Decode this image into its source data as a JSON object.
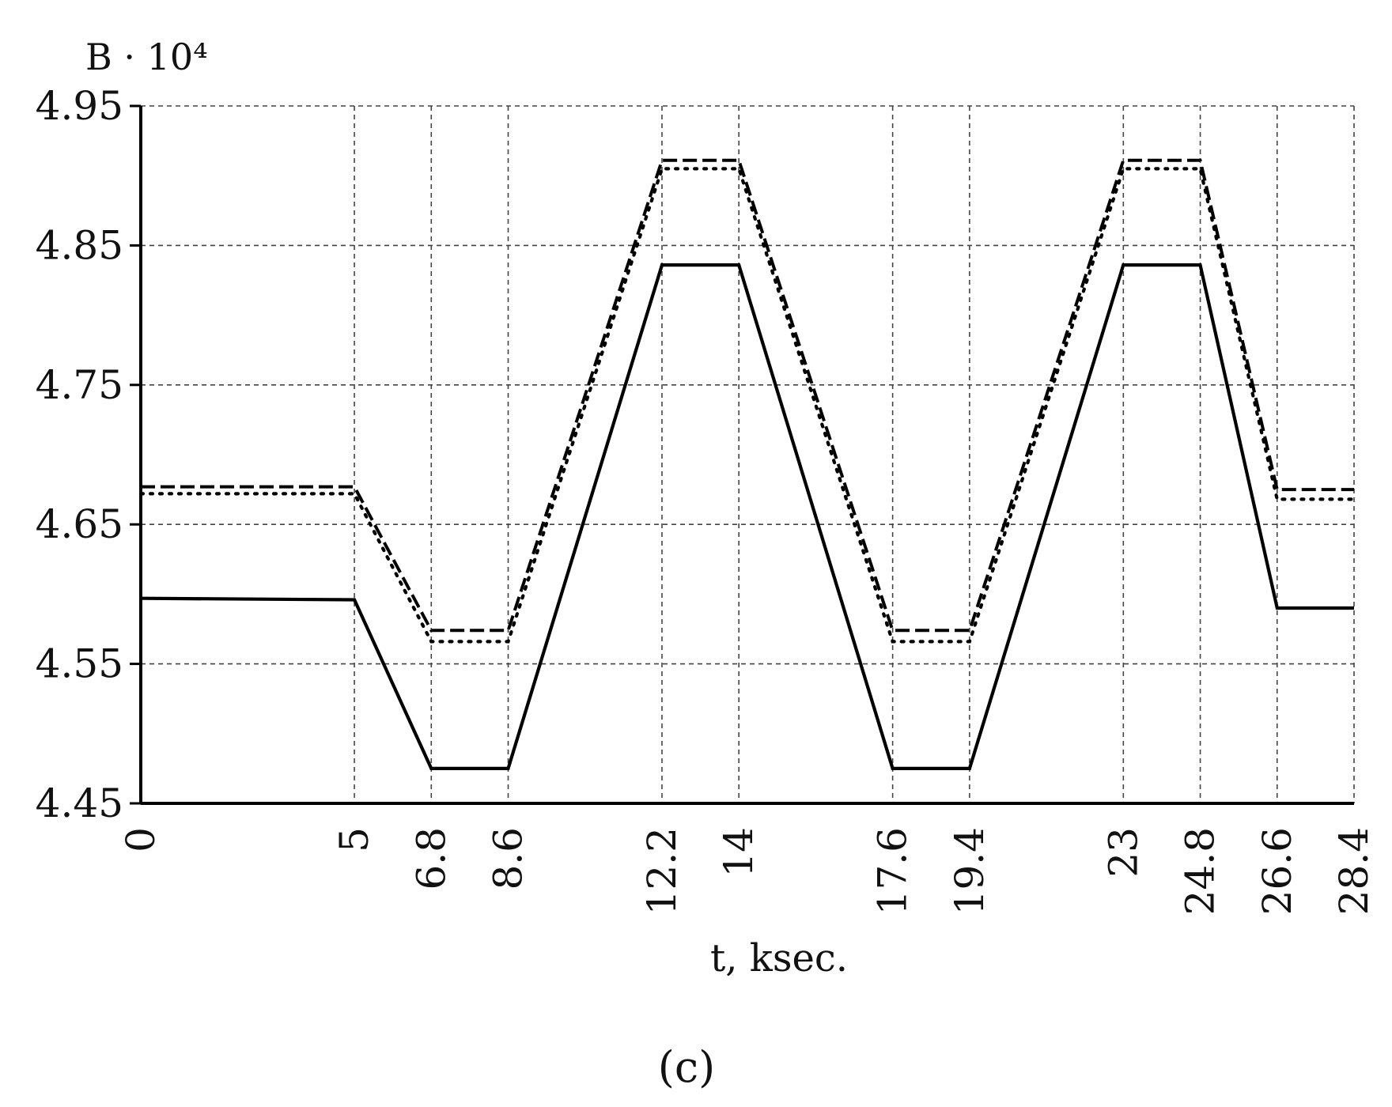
{
  "chart_data": {
    "type": "line",
    "ylabel": "B · 10⁴",
    "xlabel": "t, ksec.",
    "panel_label": "(c)",
    "x_ticks": [
      "0",
      "5",
      "6.8",
      "8.6",
      "12.2",
      "14",
      "17.6",
      "19.4",
      "23",
      "24.8",
      "26.6",
      "28.4"
    ],
    "y_ticks": [
      "4.45",
      "4.55",
      "4.65",
      "4.75",
      "4.85",
      "4.95"
    ],
    "xlim": [
      0,
      28.4
    ],
    "ylim": [
      4.45,
      4.95
    ],
    "grid": true,
    "series": [
      {
        "style": "solid",
        "x": [
          0,
          5,
          6.8,
          8.6,
          12.2,
          14,
          17.6,
          19.4,
          23,
          24.8,
          26.6,
          28.4
        ],
        "y": [
          4.597,
          4.596,
          4.475,
          4.475,
          4.836,
          4.836,
          4.475,
          4.475,
          4.836,
          4.836,
          4.59,
          4.59
        ]
      },
      {
        "style": "dashed",
        "x": [
          0,
          5,
          6.8,
          8.6,
          12.2,
          14,
          17.6,
          19.4,
          23,
          24.8,
          26.6,
          28.4
        ],
        "y": [
          4.677,
          4.677,
          4.574,
          4.574,
          4.911,
          4.911,
          4.574,
          4.574,
          4.911,
          4.911,
          4.675,
          4.675
        ]
      },
      {
        "style": "dotted",
        "x": [
          0,
          5,
          6.8,
          8.6,
          12.2,
          14,
          17.6,
          19.4,
          23,
          24.8,
          26.6,
          28.4
        ],
        "y": [
          4.672,
          4.672,
          4.566,
          4.566,
          4.905,
          4.905,
          4.566,
          4.566,
          4.905,
          4.905,
          4.668,
          4.668
        ]
      }
    ]
  }
}
